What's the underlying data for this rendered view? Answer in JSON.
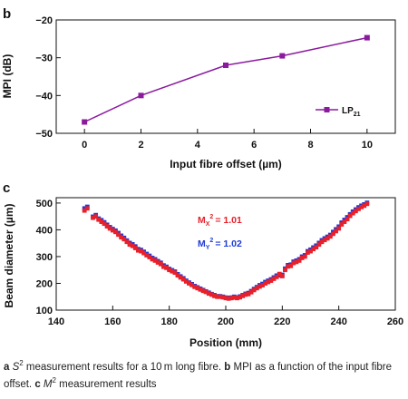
{
  "chart_data": [
    {
      "panel_label": "b",
      "type": "line",
      "xlabel": "Input fibre offset (µm)",
      "ylabel": "MPI (dB)",
      "xlim": [
        -1,
        11
      ],
      "ylim": [
        -50,
        -20
      ],
      "xticks": [
        "0",
        "2",
        "4",
        "6",
        "8",
        "10"
      ],
      "yticks": [
        "−20",
        "−30",
        "−40",
        "−50"
      ],
      "series": [
        {
          "name_base": "LP",
          "name_sub": "21",
          "color": "#8b1a9e",
          "marker": "square",
          "x": [
            0,
            2,
            5,
            7,
            10
          ],
          "y": [
            -47,
            -40,
            -32,
            -29.5,
            -24.7
          ]
        }
      ],
      "legend_position": "bottom-right"
    },
    {
      "panel_label": "c",
      "type": "scatter",
      "xlabel": "Position (mm)",
      "ylabel": "Beam diameter (µm)",
      "xlim": [
        140,
        260
      ],
      "ylim": [
        100,
        520
      ],
      "xticks": [
        "140",
        "160",
        "180",
        "200",
        "220",
        "240",
        "260"
      ],
      "yticks": [
        "100",
        "200",
        "300",
        "400",
        "500"
      ],
      "series": [
        {
          "name": "Mx",
          "color": "#e8202a",
          "marker": "square",
          "x": [
            150,
            151,
            153,
            154,
            155,
            156,
            157,
            158,
            159,
            160,
            161,
            162,
            163,
            164,
            165,
            166,
            167,
            168,
            169,
            170,
            171,
            172,
            173,
            174,
            175,
            176,
            177,
            178,
            179,
            180,
            181,
            182,
            183,
            184,
            185,
            186,
            187,
            188,
            189,
            190,
            191,
            192,
            193,
            194,
            195,
            196,
            197,
            198,
            199,
            200,
            201,
            202,
            203,
            204,
            205,
            206,
            207,
            208,
            209,
            210,
            211,
            212,
            213,
            214,
            215,
            216,
            217,
            218,
            219,
            220,
            221,
            222,
            223,
            224,
            225,
            226,
            227,
            228,
            229,
            230,
            231,
            232,
            233,
            234,
            235,
            236,
            237,
            238,
            239,
            240,
            241,
            242,
            243,
            244,
            245,
            246,
            247,
            248,
            249,
            250
          ],
          "y": [
            472,
            480,
            445,
            450,
            438,
            430,
            423,
            413,
            405,
            398,
            392,
            382,
            372,
            365,
            355,
            345,
            340,
            332,
            323,
            320,
            313,
            305,
            298,
            290,
            285,
            278,
            272,
            262,
            258,
            250,
            245,
            240,
            230,
            222,
            215,
            207,
            200,
            194,
            187,
            182,
            177,
            172,
            168,
            162,
            158,
            153,
            150,
            150,
            148,
            145,
            143,
            145,
            147,
            145,
            148,
            153,
            158,
            160,
            167,
            175,
            182,
            188,
            193,
            200,
            205,
            210,
            217,
            224,
            235,
            227,
            250,
            263,
            265,
            276,
            280,
            285,
            295,
            300,
            315,
            320,
            328,
            335,
            345,
            355,
            362,
            368,
            375,
            385,
            395,
            405,
            420,
            430,
            440,
            452,
            462,
            470,
            478,
            485,
            490,
            497
          ]
        },
        {
          "name": "My",
          "color": "#1e3ad6",
          "marker": "square",
          "x": [
            150,
            151,
            153,
            154,
            155,
            156,
            157,
            158,
            159,
            160,
            161,
            162,
            163,
            164,
            165,
            166,
            167,
            168,
            169,
            170,
            171,
            172,
            173,
            174,
            175,
            176,
            177,
            178,
            179,
            180,
            181,
            182,
            183,
            184,
            185,
            186,
            187,
            188,
            189,
            190,
            191,
            192,
            193,
            194,
            195,
            196,
            197,
            198,
            199,
            200,
            201,
            202,
            203,
            204,
            205,
            206,
            207,
            208,
            209,
            210,
            211,
            212,
            213,
            214,
            215,
            216,
            217,
            218,
            219,
            220,
            221,
            222,
            223,
            224,
            225,
            226,
            227,
            228,
            229,
            230,
            231,
            232,
            233,
            234,
            235,
            236,
            237,
            238,
            239,
            240,
            241,
            242,
            243,
            244,
            245,
            246,
            247,
            248,
            249,
            250
          ],
          "y": [
            480,
            486,
            449,
            455,
            442,
            436,
            428,
            419,
            410,
            403,
            397,
            388,
            378,
            370,
            360,
            351,
            346,
            338,
            328,
            325,
            318,
            310,
            303,
            295,
            290,
            283,
            277,
            267,
            262,
            254,
            249,
            244,
            234,
            226,
            219,
            210,
            203,
            197,
            190,
            185,
            180,
            175,
            170,
            165,
            160,
            156,
            152,
            152,
            150,
            147,
            146,
            147,
            150,
            147,
            151,
            156,
            161,
            164,
            171,
            179,
            186,
            193,
            198,
            205,
            210,
            215,
            222,
            229,
            230,
            232,
            255,
            268,
            270,
            281,
            285,
            290,
            300,
            305,
            320,
            326,
            334,
            341,
            351,
            361,
            368,
            374,
            381,
            392,
            402,
            412,
            427,
            437,
            447,
            458,
            468,
            476,
            484,
            490,
            495,
            501
          ]
        }
      ],
      "annotations": {
        "mx": {
          "base": "M",
          "sub": "X",
          "sup": "2",
          "value": "= 1.01",
          "color": "#e8202a"
        },
        "my": {
          "base": "M",
          "sub": "Y",
          "sup": "2",
          "value": "= 1.02",
          "color": "#1e3ad6"
        }
      }
    }
  ],
  "caption": {
    "a_label": "a",
    "s_base": "S",
    "s_sup": "2",
    "a_rest": " measurement results for a 10 m long fibre. ",
    "b_label": "b",
    "b_rest": " MPI as a function of the input fibre offset. ",
    "c_label": "c",
    "m_base": "M",
    "m_sup": "2",
    "c_rest": " measurement results"
  }
}
